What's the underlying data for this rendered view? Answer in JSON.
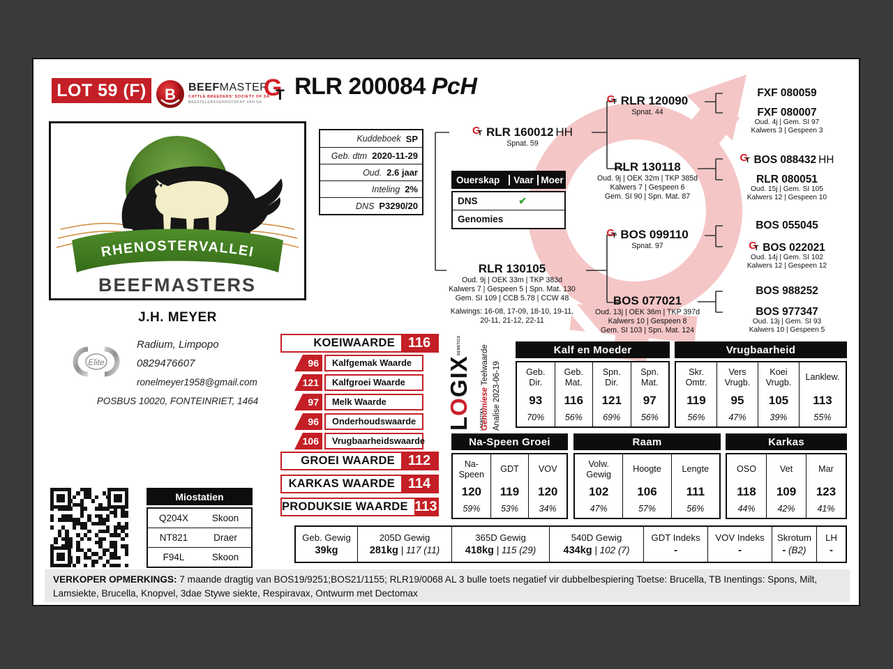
{
  "header": {
    "lot_label": "LOT 59 (F)",
    "animal_id": "RLR 200084",
    "animal_suffix": "PcH",
    "beefmaster": {
      "b": "B",
      "word_bold": "BEEF",
      "word_light": "MASTER",
      "line1": "CATTLE BREEDERS' SOCIETY OF SA",
      "line2": "BEESTELERSGENOOTSKAP VAN SA"
    }
  },
  "gt_icon": {
    "g": "G",
    "t": "T"
  },
  "kuddeboek": {
    "rows": [
      {
        "label": "Kuddeboek",
        "value": "SP"
      },
      {
        "label": "Geb. dtm",
        "value": "2020-11-29"
      },
      {
        "label": "Oud.",
        "value": "2.6 jaar"
      },
      {
        "label": "Inteling",
        "value": "2%"
      },
      {
        "label": "DNS",
        "value": "P3290/20"
      }
    ]
  },
  "ouerskap": {
    "headers": [
      "Ouerskap",
      "Vaar",
      "Moer"
    ],
    "rows": [
      {
        "label": "DNS",
        "vaar": "✔",
        "moer": ""
      },
      {
        "label": "Genomies",
        "vaar": "",
        "moer": ""
      }
    ]
  },
  "breeder": {
    "farm_top": "RHENOSTERVALLEI",
    "farm_bottom": "BEEFMASTERS",
    "name": "J.H. MEYER",
    "emblem": "Elite",
    "location": "Radium, Limpopo",
    "phone": "0829476607",
    "email": "ronelmeyer1958@gmail.com",
    "address": "POSBUS 10020, FONTEINRIET, 1464"
  },
  "pedigree": {
    "sire": {
      "name": "RLR 160012",
      "suffix": "HH",
      "sub": [
        "Spnat. 59"
      ]
    },
    "dam": {
      "name": "RLR 130105",
      "sub": [
        "Oud. 9j | OEK 33m | TKP 383d",
        "Kalwers 7 | Gespeen 5 | Spn. Mat. 130",
        "Gem. SI 109 | CCB 5.78 | CCW 48"
      ],
      "kalwings": [
        "Kalwings: 16-08, 17-09, 18-10, 19-11,",
        "20-11, 21-12, 22-11"
      ]
    },
    "ss": {
      "name": "RLR 120090",
      "sub": [
        "Spnat. 44"
      ]
    },
    "sd": {
      "name": "RLR 130118",
      "sub": [
        "Oud. 9j | OEK 32m | TKP 385d",
        "Kalwers 7 | Gespeen 6",
        "Gem. SI 90 | Spn. Mat. 87"
      ]
    },
    "ds": {
      "name": "BOS 099110",
      "sub": [
        "Spnat. 97"
      ]
    },
    "dd": {
      "name": "BOS 077021",
      "sub": [
        "Oud. 13j | OEK 36m | TKP 397d",
        "Kalwers 10 | Gespeen 8",
        "Gem. SI 103 | Spn. Mat. 124"
      ]
    },
    "sss": {
      "name": "FXF 080059"
    },
    "ssd": {
      "name": "FXF 080007",
      "sub": [
        "Oud. 4j | Gem. SI 97",
        "Kalwers 3 | Gespeen 3"
      ]
    },
    "sds": {
      "name": "BOS 088432",
      "suffix": "HH"
    },
    "sdd": {
      "name": "RLR 080051",
      "sub": [
        "Oud. 15j | Gem. SI 105",
        "Kalwers 12 | Gespeen 10"
      ]
    },
    "dss": {
      "name": "BOS 055045"
    },
    "dsd": {
      "name": "BOS 022021",
      "sub": [
        "Oud. 14j | Gem. SI 102",
        "Kalwers 12 | Gespeen 12"
      ]
    },
    "dds": {
      "name": "BOS 988252"
    },
    "ddd": {
      "name": "BOS 977347",
      "sub": [
        "Oud. 13j | Gem. SI 93",
        "Kalwers 10 | Gespeen 5"
      ]
    }
  },
  "waardes": {
    "koei": {
      "label": "KOEIWAARDE",
      "value": "116"
    },
    "sub": [
      {
        "value": "96",
        "label": "Kalfgemak Waarde"
      },
      {
        "value": "121",
        "label": "Kalfgroei Waarde"
      },
      {
        "value": "97",
        "label": "Melk Waarde"
      },
      {
        "value": "96",
        "label": "Onderhoudswaarde"
      },
      {
        "value": "106",
        "label": "Vrugbaarheidswaarde"
      }
    ],
    "groei": {
      "label": "GROEI WAARDE",
      "value": "112"
    },
    "karkas": {
      "label": "KARKAS WAARDE",
      "value": "114"
    },
    "produksie": {
      "label": "PRODUKSIE WAARDE",
      "value": "113"
    }
  },
  "logix": {
    "b1": "L",
    "b2": "O",
    "b3": "GIX",
    "small": "GENETICS / GENETIKA",
    "line1a": "Genomiese",
    "line1b": " Teelwaarde",
    "line2": "Analise 2023-06-19"
  },
  "ebv_top": {
    "groups": [
      {
        "title": "Kalf en Moeder",
        "cols": [
          {
            "l1": "Geb.",
            "l2": "Dir.",
            "value": "93",
            "acc": "70%"
          },
          {
            "l1": "Geb.",
            "l2": "Mat.",
            "value": "116",
            "acc": "56%"
          },
          {
            "l1": "Spn.",
            "l2": "Dir.",
            "value": "121",
            "acc": "69%"
          },
          {
            "l1": "Spn.",
            "l2": "Mat.",
            "value": "97",
            "acc": "56%"
          }
        ]
      },
      {
        "title": "Vrugbaarheid",
        "cols": [
          {
            "l1": "Skr.",
            "l2": "Omtr.",
            "value": "119",
            "acc": "56%"
          },
          {
            "l1": "Vers",
            "l2": "Vrugb.",
            "value": "95",
            "acc": "47%"
          },
          {
            "l1": "Koei",
            "l2": "Vrugb.",
            "value": "105",
            "acc": "39%"
          },
          {
            "l1": "Lanklew.",
            "l2": "",
            "value": "113",
            "acc": "55%"
          }
        ]
      }
    ]
  },
  "ebv_bottom": {
    "groups": [
      {
        "title": "Na-Speen Groei",
        "cols": [
          {
            "l1": "Na-",
            "l2": "Speen",
            "value": "120",
            "acc": "59%"
          },
          {
            "l1": "GDT",
            "l2": "",
            "value": "119",
            "acc": "53%"
          },
          {
            "l1": "VOV",
            "l2": "",
            "value": "120",
            "acc": "34%"
          }
        ]
      },
      {
        "title": "Raam",
        "cols": [
          {
            "l1": "Volw.",
            "l2": "Gewig",
            "value": "102",
            "acc": "47%"
          },
          {
            "l1": "Hoogte",
            "l2": "",
            "value": "106",
            "acc": "57%"
          },
          {
            "l1": "Lengte",
            "l2": "",
            "value": "111",
            "acc": "56%"
          }
        ]
      },
      {
        "title": "Karkas",
        "cols": [
          {
            "l1": "OSO",
            "l2": "",
            "value": "118",
            "acc": "44%"
          },
          {
            "l1": "Vet",
            "l2": "",
            "value": "109",
            "acc": "42%"
          },
          {
            "l1": "Mar",
            "l2": "",
            "value": "123",
            "acc": "41%"
          }
        ]
      }
    ]
  },
  "weights": {
    "cols": [
      {
        "label": "Geb. Gewig",
        "value": "39kg",
        "rest": ""
      },
      {
        "label": "205D Gewig",
        "value": "281kg",
        "rest": " | 117 (11)"
      },
      {
        "label": "365D Gewig",
        "value": "418kg",
        "rest": " | 115 (29)"
      },
      {
        "label": "540D Gewig",
        "value": "434kg",
        "rest": " | 102 (7)"
      },
      {
        "label": "GDT Indeks",
        "value": "-",
        "rest": ""
      },
      {
        "label": "VOV Indeks",
        "value": "-",
        "rest": ""
      },
      {
        "label": "Skrotum",
        "value": "-",
        "rest": " (B2)"
      },
      {
        "label": "LH",
        "value": "-",
        "rest": ""
      }
    ]
  },
  "miostatien": {
    "title": "Miostatien",
    "rows": [
      {
        "code": "Q204X",
        "status": "Skoon"
      },
      {
        "code": "NT821",
        "status": "Draer"
      },
      {
        "code": "F94L",
        "status": "Skoon"
      }
    ]
  },
  "footer": {
    "label": "VERKOPER OPMERKINGS:",
    "text": "7 maande dragtig van BOS19/9251;BOS21/1155; RLR19/0068 AL 3 bulle toets negatief vir dubbelbespiering Toetse: Brucella, TB Inentings: Spons, Milt, Lamsiekte, Brucella, Knopvel, 3dae Stywe siekte, Respiravax, Ontwurm met Dectomax"
  }
}
